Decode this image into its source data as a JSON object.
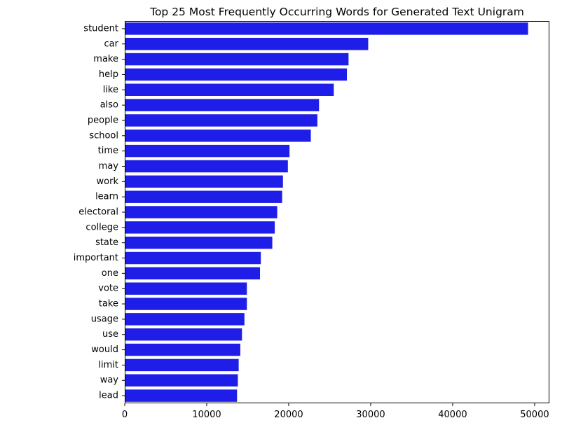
{
  "chart_data": {
    "type": "bar",
    "orientation": "horizontal",
    "title": "Top 25 Most Frequently Occurring Words for Generated Text Unigram",
    "xlabel": "",
    "ylabel": "",
    "categories": [
      "student",
      "car",
      "make",
      "help",
      "like",
      "also",
      "people",
      "school",
      "time",
      "may",
      "work",
      "learn",
      "electoral",
      "college",
      "state",
      "important",
      "one",
      "vote",
      "take",
      "usage",
      "use",
      "would",
      "limit",
      "way",
      "lead"
    ],
    "values": [
      49200,
      29700,
      27300,
      27100,
      25500,
      23700,
      23500,
      22700,
      20100,
      19900,
      19300,
      19200,
      18600,
      18300,
      18000,
      16600,
      16500,
      14900,
      14900,
      14600,
      14300,
      14100,
      13900,
      13800,
      13700
    ],
    "xlim": [
      0,
      51800
    ],
    "xticks": [
      0,
      10000,
      20000,
      30000,
      40000,
      50000
    ],
    "xtick_labels": [
      "0",
      "10000",
      "20000",
      "30000",
      "40000",
      "50000"
    ],
    "bar_color": "#1e1ee8",
    "grid": false,
    "legend": "none"
  }
}
